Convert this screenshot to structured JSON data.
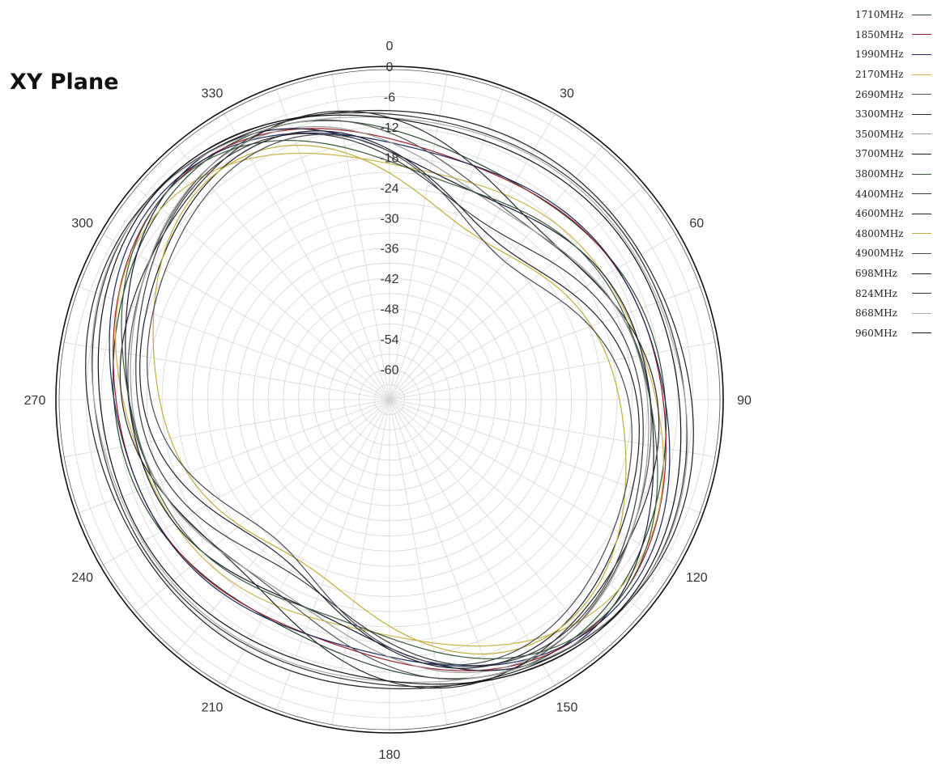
{
  "chart_data": {
    "type": "polar-line",
    "title": "XY Plane",
    "radial_range": [
      -66,
      0
    ],
    "radial_ticks": [
      "0",
      "-6",
      "-12",
      "-18",
      "-24",
      "-30",
      "-36",
      "-42",
      "-48",
      "-54",
      "-60"
    ],
    "angle_ticks": [
      "0",
      "30",
      "60",
      "90",
      "120",
      "150",
      "180",
      "210",
      "240",
      "270",
      "300",
      "330"
    ],
    "grid": true,
    "legend_position": "top-right",
    "series": [
      {
        "name": "1710MHz",
        "color": "#2b4a2b",
        "mean": -7.0,
        "a2": 4.5,
        "p2": 312,
        "a4": 1.3,
        "p4": 40
      },
      {
        "name": "1850MHz",
        "color": "#9a1b2a",
        "mean": -6.8,
        "a2": 5.0,
        "p2": 308,
        "a4": 1.5,
        "p4": 30
      },
      {
        "name": "1990MHz",
        "color": "#1a2a5a",
        "mean": -6.5,
        "a2": 5.2,
        "p2": 305,
        "a4": 1.6,
        "p4": 25
      },
      {
        "name": "2170MHz",
        "color": "#c9b34a",
        "mean": -8.5,
        "a2": 6.0,
        "p2": 300,
        "a4": 1.8,
        "p4": 20
      },
      {
        "name": "2690MHz",
        "color": "#555555",
        "mean": -8.0,
        "a2": 6.5,
        "p2": 318,
        "a4": 2.0,
        "p4": 50
      },
      {
        "name": "3300MHz",
        "color": "#2a2a2a",
        "mean": -7.5,
        "a2": 6.0,
        "p2": 322,
        "a4": 2.2,
        "p4": 60
      },
      {
        "name": "3500MHz",
        "color": "#9a9a9a",
        "mean": -8.5,
        "a2": 6.5,
        "p2": 315,
        "a4": 2.0,
        "p4": 45
      },
      {
        "name": "3700MHz",
        "color": "#1a1a3a",
        "mean": -7.0,
        "a2": 7.0,
        "p2": 310,
        "a4": 2.5,
        "p4": 35
      },
      {
        "name": "3800MHz",
        "color": "#3a5a3a",
        "mean": -7.5,
        "a2": 7.0,
        "p2": 306,
        "a4": 2.3,
        "p4": 28
      },
      {
        "name": "4400MHz",
        "color": "#3a3a3a",
        "mean": -9.0,
        "a2": 8.0,
        "p2": 312,
        "a4": 2.5,
        "p4": 45
      },
      {
        "name": "4600MHz",
        "color": "#202030",
        "mean": -9.5,
        "a2": 8.5,
        "p2": 316,
        "a4": 2.6,
        "p4": 52
      },
      {
        "name": "4800MHz",
        "color": "#bfae3c",
        "mean": -11.0,
        "a2": 9.0,
        "p2": 314,
        "a4": 2.4,
        "p4": 40
      },
      {
        "name": "4900MHz",
        "color": "#4a4a5a",
        "mean": -10.5,
        "a2": 9.0,
        "p2": 318,
        "a4": 2.6,
        "p4": 55
      },
      {
        "name": "698MHz",
        "color": "#222222",
        "mean": -4.5,
        "a2": 2.5,
        "p2": 300,
        "a4": 0.8,
        "p4": 10
      },
      {
        "name": "824MHz",
        "color": "#333333",
        "mean": -4.8,
        "a2": 2.8,
        "p2": 305,
        "a4": 0.9,
        "p4": 20
      },
      {
        "name": "868MHz",
        "color": "#aaaaaa",
        "mean": -5.0,
        "a2": 3.0,
        "p2": 302,
        "a4": 1.0,
        "p4": 15
      },
      {
        "name": "960MHz",
        "color": "#111111",
        "mean": -5.2,
        "a2": 3.2,
        "p2": 308,
        "a4": 1.1,
        "p4": 25
      }
    ]
  }
}
